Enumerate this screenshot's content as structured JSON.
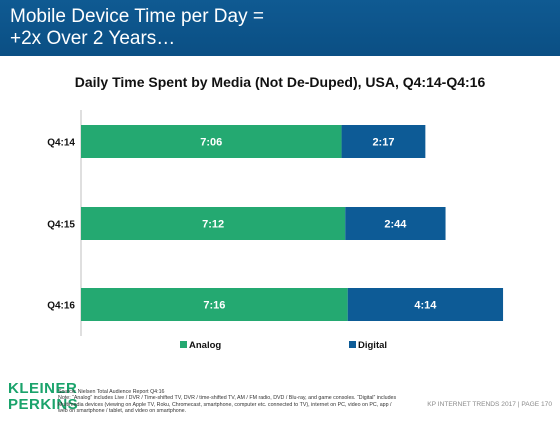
{
  "header": {
    "title_line1": "Mobile Device Time per Day =",
    "title_line2": "+2x Over 2 Years…"
  },
  "chart_data": {
    "type": "bar",
    "orientation": "horizontal",
    "stacked": true,
    "title": "Daily Time Spent by Media (Not De-Duped), USA, Q4:14-Q4:16",
    "categories": [
      "Q4:14",
      "Q4:15",
      "Q4:16"
    ],
    "series": [
      {
        "name": "Analog",
        "color": "#24a971",
        "values": [
          7.1,
          7.2,
          7.267
        ],
        "labels": [
          "7:06",
          "7:12",
          "7:16"
        ]
      },
      {
        "name": "Digital",
        "color": "#0d5b96",
        "values": [
          2.283,
          2.733,
          4.233
        ],
        "labels": [
          "2:17",
          "2:44",
          "4:14"
        ]
      }
    ],
    "value_unit": "hours",
    "xlim": [
      0,
      12
    ],
    "grid": false,
    "legend": "bottom"
  },
  "footer": {
    "logo_line1": "KLEINER",
    "logo_line2": "PERKINS",
    "source": "Source: Nielsen Total Audience Report Q4:16",
    "note1": "Note: “Analog” includes Live / DVR / Time-shifted TV, DVR / time-shifted TV, AM / FM radio, DVD / Blu-ray, and game consoles. “Digital” includes",
    "note2": "Multimedia devices (viewing on Apple TV, Roku, Chromecast, smartphone, computer etc. connected to TV), internet on PC, video on PC, app /",
    "note3": "web on smartphone / tablet, and video on smartphone.",
    "page": "KP INTERNET TRENDS 2017  |  PAGE 170"
  }
}
